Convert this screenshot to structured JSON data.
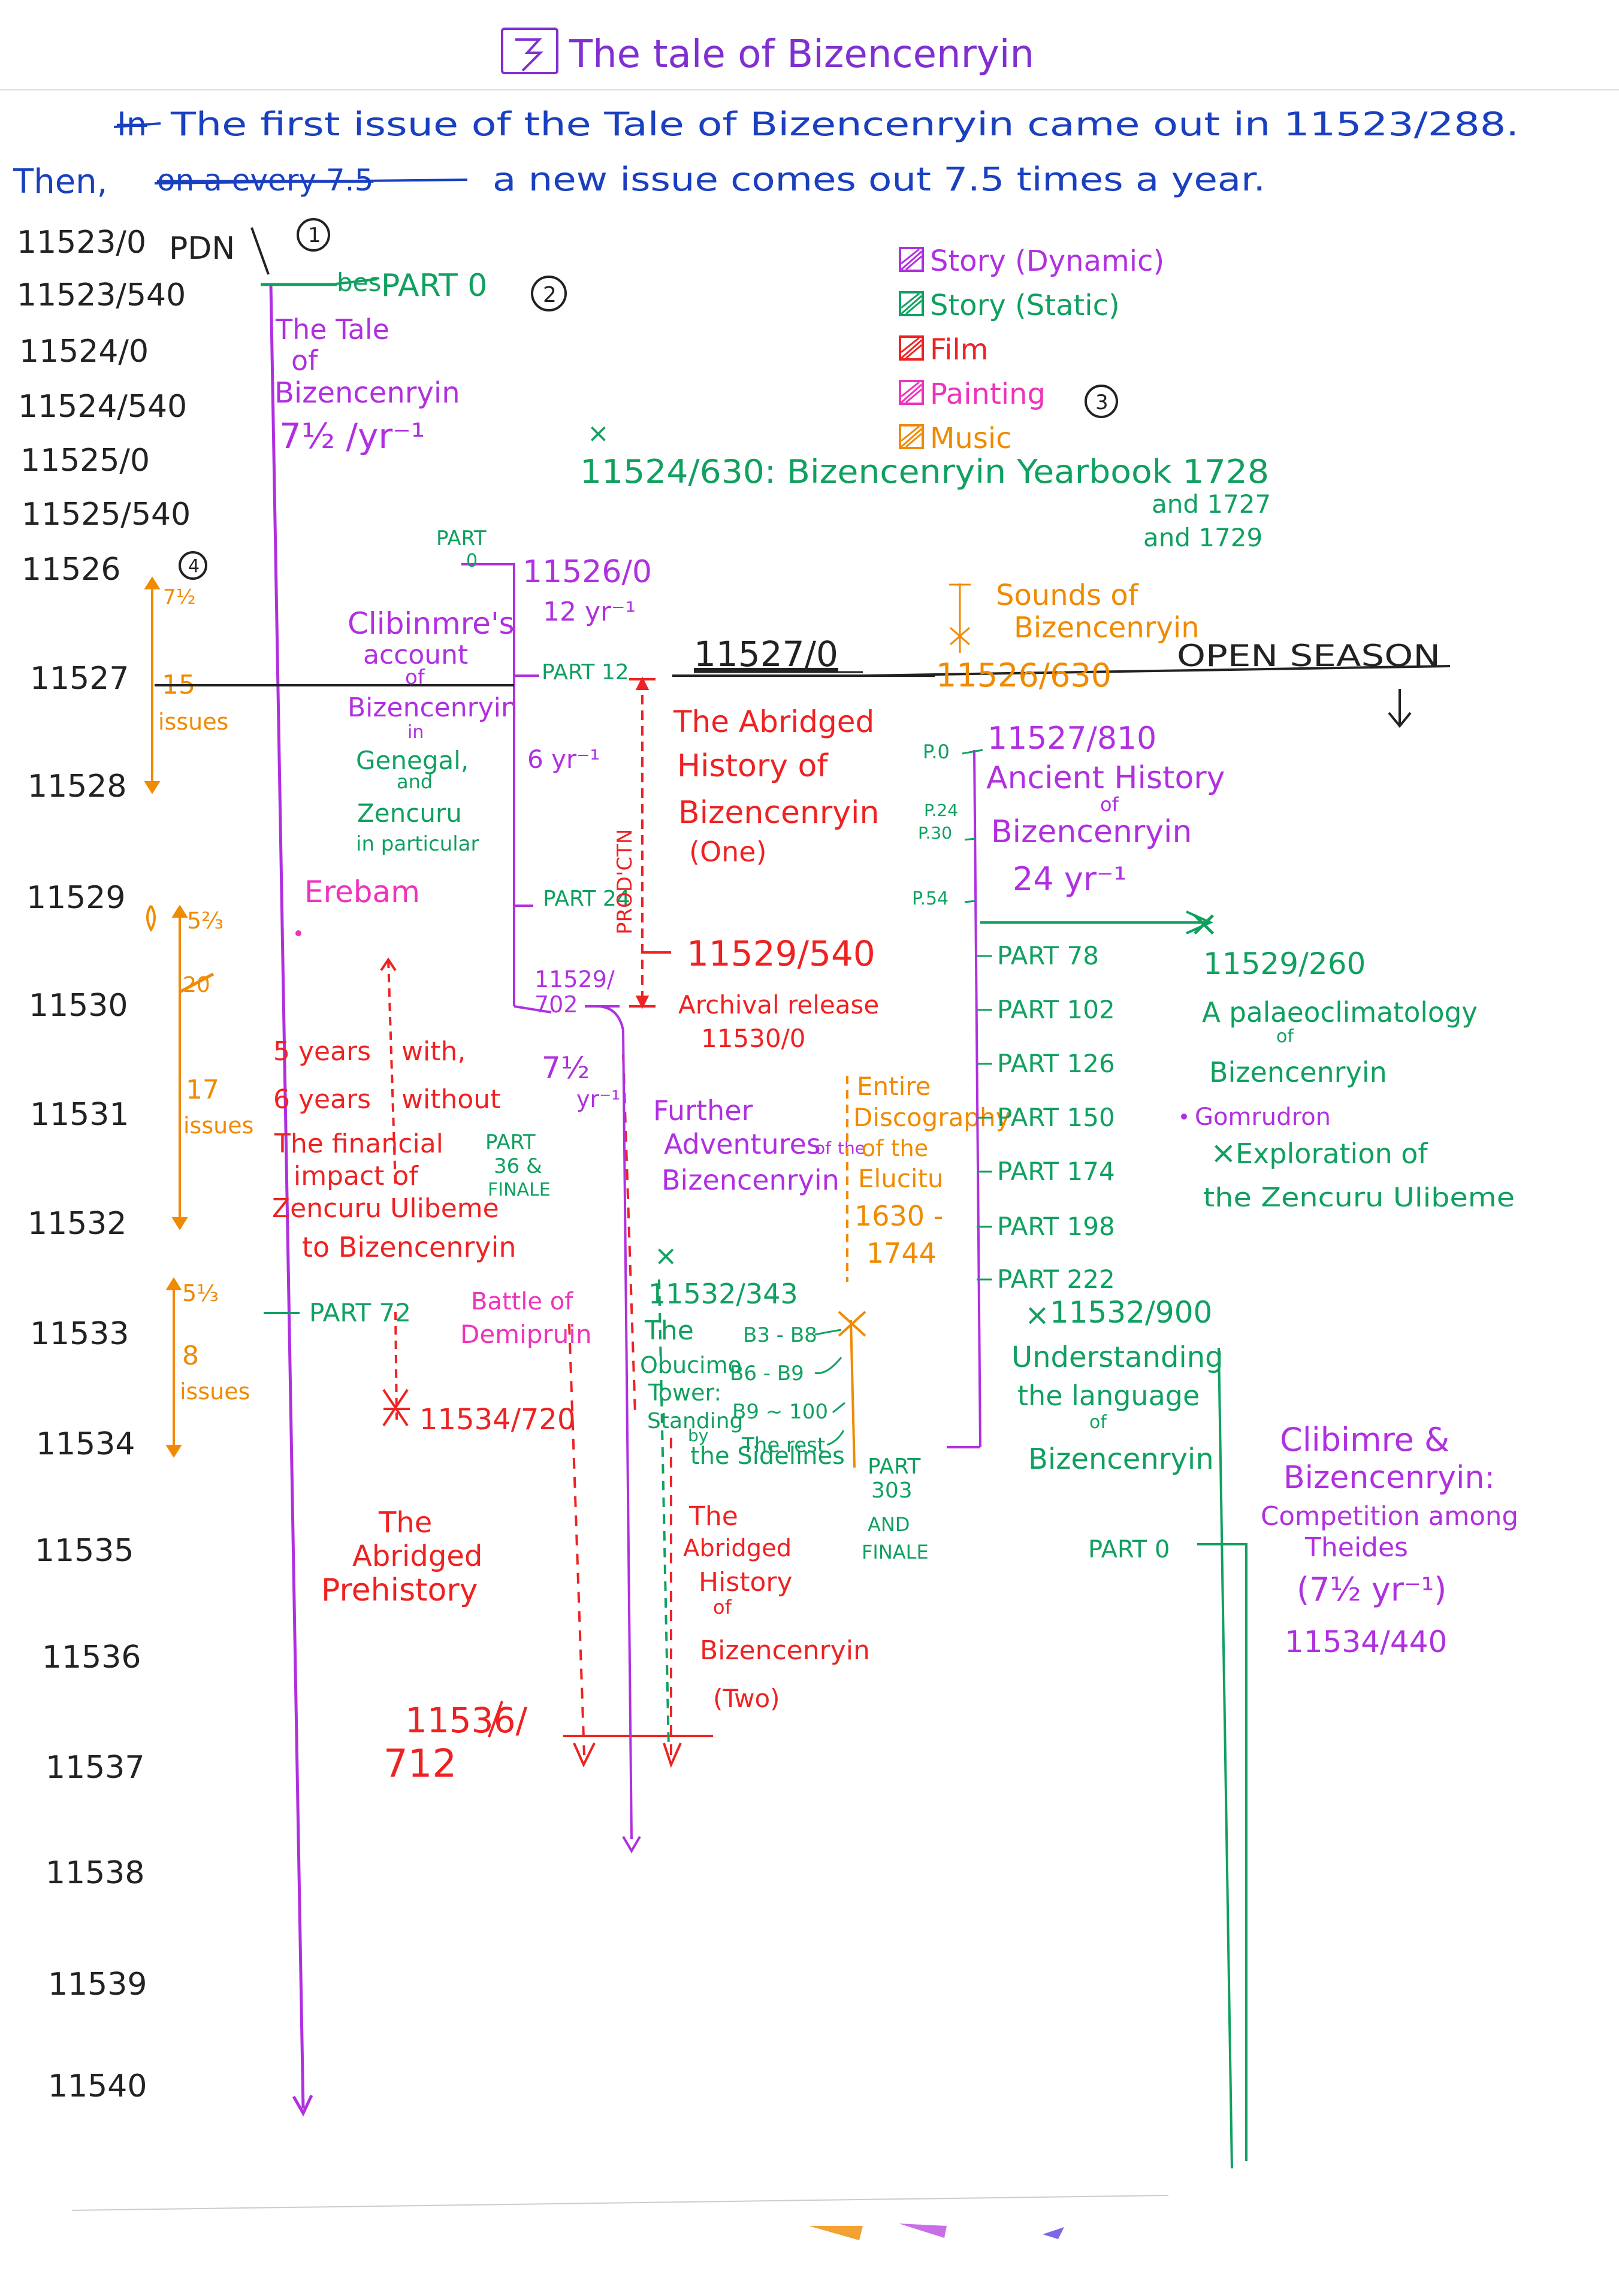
{
  "header": {
    "title_icon": "number-3-box-icon",
    "title": "The tale of Bizencenryin",
    "intro_struck": "In",
    "intro_line1": "The first issue of the Tale of Bizencenryin came out in 11523/288.",
    "intro_then": "Then,",
    "intro_struck2": "on a every 7.5",
    "intro_line2": "a new issue comes out 7.5 times a year."
  },
  "circled_numbers": [
    "1",
    "2",
    "3",
    "4"
  ],
  "timeline": {
    "years": [
      "11523/0",
      "11523/540",
      "11524/0",
      "11524/540",
      "11525/0",
      "11525/540",
      "11526",
      "11527",
      "11528",
      "11529",
      "11530",
      "11531",
      "11532",
      "11533",
      "11534",
      "11535",
      "11536",
      "11537",
      "11538",
      "11539",
      "11540"
    ],
    "pdn": "PDN"
  },
  "legend": [
    {
      "label": "Story (Dynamic)",
      "color": "#b030e0"
    },
    {
      "label": "Story (Static)",
      "color": "#10a060"
    },
    {
      "label": "Film",
      "color": "#ee2222"
    },
    {
      "label": "Painting",
      "color": "#ee33bb"
    },
    {
      "label": "Music",
      "color": "#f08a00"
    }
  ],
  "colors": {
    "purple": "#b030e0",
    "green": "#10a060",
    "red": "#ee2222",
    "pink": "#ee33bb",
    "orange": "#f08a00",
    "ink": "#222222"
  },
  "orange_brackets": {
    "a": {
      "top": "7½",
      "count": "15",
      "unit": "issues"
    },
    "b": {
      "top": "5⅔",
      "struck": "20",
      "count": "17",
      "unit": "issues"
    },
    "c": {
      "top": "5⅓",
      "count": "8",
      "unit": "issues"
    }
  },
  "tale": {
    "part0": "PART 0",
    "struck": "bes",
    "title_l1": "The Tale",
    "title_l2": "of",
    "title_l3": "Bizencenryin",
    "rate": "7½ /yr⁻¹"
  },
  "yearbook": {
    "line": "11524/630: Bizencenryin Yearbook 1728",
    "and1": "and 1727",
    "and2": "and 1729"
  },
  "clibinmre": {
    "part_top": "PART 0",
    "date": "11526/0",
    "rate1": "12 yr⁻¹",
    "part12": "PART 12",
    "rate2": "6 yr⁻¹",
    "part24": "PART 24",
    "l1": "Clibinmre's",
    "l2": "account",
    "l3": "of",
    "l4": "Bizencenryin",
    "l5": "in",
    "l6": "Genegal,",
    "l7": "and",
    "l8": "Zencuru",
    "l9": "in particular"
  },
  "erebam": "Erebam",
  "five_years": {
    "l1": "5 years",
    "l2": "with,",
    "l3": "6 years",
    "l4": "without"
  },
  "financial": {
    "l1": "The financial",
    "l2": "impact of",
    "l3": "Zencuru Ulibeme",
    "l4": "to Bizencenryin"
  },
  "part36": {
    "l1": "PART",
    "l2": "36 &",
    "l3": "FINALE"
  },
  "part72": "PART 72",
  "battle": {
    "l1": "Battle of",
    "l2": "Demipruin"
  },
  "date_11534_720": "11534/720",
  "prehistory": {
    "l1": "The",
    "l2": "Abridged",
    "l3": "Prehistory"
  },
  "date_11536_712": {
    "l1": "11536/",
    "l2": "712"
  },
  "mid": {
    "date1": "11529/",
    "date2": "702",
    "rate1": "7½",
    "rate2": "yr⁻¹"
  },
  "abridged_one": {
    "date": "11527/0",
    "l1": "The Abridged",
    "l2": "History of",
    "l3": "Bizencenryin",
    "l4": "(One)",
    "prodn": "PROD'CTN",
    "date2": "11529/540",
    "archival": "Archival release",
    "archival_date": "11530/0"
  },
  "further": {
    "l1": "Further",
    "l2": "Adventures",
    "l3": "of",
    "l4": "the",
    "l5": "Bizencenryin"
  },
  "discog": {
    "l1": "Entire",
    "l2": "Discography",
    "l3": "of the",
    "l4": "Elucitu",
    "l5": "1630 -",
    "l6": "1744"
  },
  "obucimo": {
    "date": "11532/343",
    "l1": "The",
    "l2": "Obucimo",
    "l3": "Tower:",
    "l4": "Standing",
    "l5": "by",
    "l6": "the Sidelines",
    "b1": "B3 - B8",
    "b2": "B6 - B9",
    "b3": "B9 ~ 100",
    "b4": "The rest"
  },
  "abridged_two": {
    "l1": "The",
    "l2": "Abridged",
    "l3": "History",
    "l4": "of",
    "l5": "Bizencenryin",
    "l6": "(Two)"
  },
  "part303": {
    "l1": "PART",
    "l2": "303",
    "l3": "AND",
    "l4": "FINALE"
  },
  "sounds": {
    "l1": "Sounds of",
    "l2": "Bizencenryin"
  },
  "open_season": {
    "date": "11526/630",
    "label": "OPEN SEASON"
  },
  "ancient": {
    "date": "11527/810",
    "l1": "Ancient History",
    "l2": "of",
    "l3": "Bizencenryin",
    "rate": "24 yr⁻¹",
    "p0": "P.0",
    "p24": "P.24",
    "p30": "P.30",
    "p54": "P.54",
    "parts": [
      "PART 78",
      "PART 102",
      "PART 126",
      "PART 150",
      "PART 174",
      "PART 198",
      "PART 222"
    ]
  },
  "palaeo": {
    "date": "11529/260",
    "l1": "A palaeoclimatology",
    "l2": "of",
    "l3": "Bizencenryin",
    "l4": "Gomrudron",
    "l5": "Exploration of",
    "l6": "the Zencuru Ulibeme"
  },
  "understanding": {
    "date": "11532/900",
    "l1": "Understanding",
    "l2": "the language",
    "l3": "of",
    "l4": "Bizencenryin"
  },
  "competition": {
    "part": "PART 0",
    "l1": "Clibimre &",
    "l2": "Bizencenryin:",
    "l3": "Competition among",
    "l4": "Theides",
    "rate": "(7½ yr⁻¹)",
    "date": "11534/440"
  }
}
